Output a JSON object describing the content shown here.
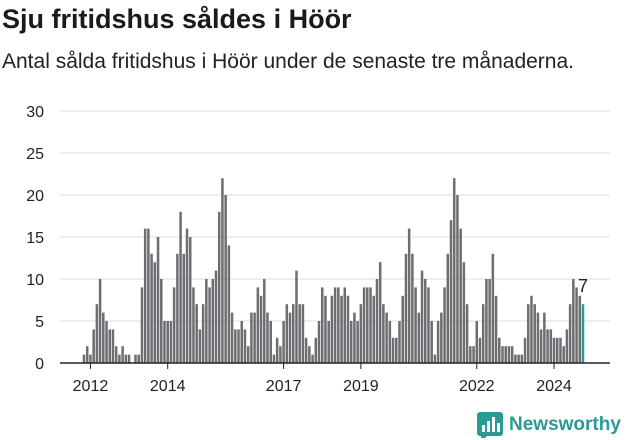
{
  "title": "Sju fritidshus såldes i Höör",
  "subtitle": "Antal sålda fritidshus i Höör under de senaste tre månaderna.",
  "brand": {
    "name": "Newsworthy"
  },
  "colors": {
    "bar": "#6e6e72",
    "highlight": "#2a9a95",
    "grid": "#dddddd",
    "axis": "#222222"
  },
  "chart_data": {
    "type": "bar",
    "title": "",
    "xlabel": "",
    "ylabel": "",
    "ylim": [
      0,
      30
    ],
    "y_ticks": [
      0,
      5,
      10,
      15,
      20,
      25,
      30
    ],
    "x_tick_labels": [
      "2012",
      "2014",
      "2017",
      "2019",
      "2022",
      "2024"
    ],
    "highlight_last": true,
    "last_value_label": "7",
    "values": [
      1,
      2,
      1,
      4,
      7,
      10,
      6,
      5,
      4,
      4,
      2,
      1,
      2,
      1,
      1,
      0,
      1,
      1,
      9,
      16,
      16,
      13,
      12,
      15,
      10,
      5,
      5,
      5,
      9,
      13,
      18,
      13,
      16,
      15,
      9,
      7,
      4,
      7,
      10,
      9,
      10,
      11,
      18,
      22,
      20,
      14,
      6,
      4,
      4,
      5,
      4,
      2,
      6,
      6,
      9,
      8,
      10,
      6,
      5,
      1,
      3,
      2,
      5,
      7,
      6,
      7,
      11,
      7,
      7,
      3,
      2,
      1,
      3,
      5,
      9,
      8,
      5,
      8,
      9,
      9,
      8,
      9,
      8,
      5,
      6,
      5,
      7,
      9,
      9,
      9,
      8,
      10,
      12,
      7,
      6,
      5,
      3,
      3,
      5,
      8,
      13,
      16,
      13,
      9,
      6,
      11,
      10,
      9,
      5,
      1,
      5,
      6,
      9,
      13,
      17,
      22,
      20,
      16,
      12,
      7,
      2,
      2,
      5,
      3,
      7,
      10,
      10,
      13,
      8,
      3,
      2,
      2,
      2,
      2,
      1,
      1,
      1,
      3,
      7,
      8,
      7,
      6,
      4,
      6,
      4,
      4,
      3,
      3,
      3,
      2,
      4,
      7,
      10,
      9,
      8,
      7
    ]
  }
}
